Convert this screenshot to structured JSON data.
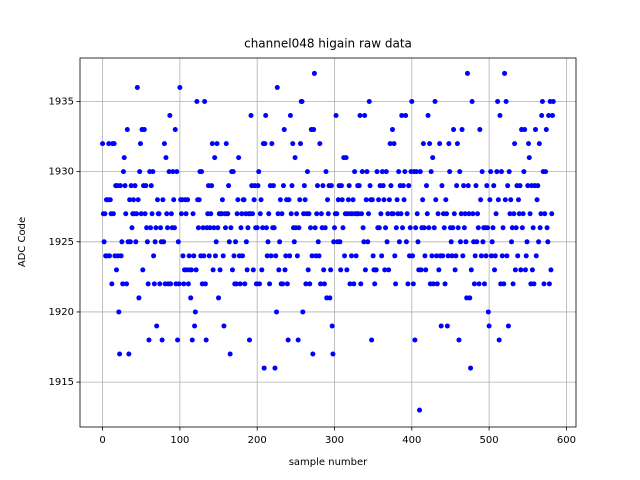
{
  "chart_data": {
    "type": "scatter",
    "title": "channel048 higain raw data",
    "xlabel": "sample number",
    "ylabel": "ADC Code",
    "grid": true,
    "xlim": [
      -29.2,
      612.4
    ],
    "ylim": [
      1911.8,
      1938.1
    ],
    "xticks": [
      0,
      100,
      200,
      300,
      400,
      500,
      600
    ],
    "yticks": [
      1915,
      1920,
      1925,
      1930,
      1935
    ],
    "series": [
      {
        "color": "#0000ff",
        "x": [
          0,
          1,
          2,
          3,
          4,
          5,
          6,
          7,
          8,
          9,
          10,
          11,
          12,
          13,
          14,
          15,
          16,
          17,
          18,
          19,
          20,
          21,
          22,
          23,
          24,
          25,
          26,
          27,
          28,
          29,
          30,
          31,
          32,
          33,
          34,
          35,
          36,
          37,
          38,
          39,
          40,
          41,
          42,
          43,
          44,
          45,
          46,
          47,
          48,
          49,
          50,
          51,
          52,
          53,
          54,
          55,
          56,
          57,
          58,
          59,
          60,
          61,
          62,
          63,
          64,
          65,
          66,
          67,
          68,
          69,
          70,
          71,
          72,
          73,
          74,
          75,
          76,
          77,
          78,
          79,
          80,
          81,
          82,
          83,
          84,
          85,
          86,
          87,
          88,
          89,
          90,
          91,
          92,
          93,
          94,
          95,
          96,
          97,
          98,
          99,
          100,
          101,
          102,
          103,
          104,
          105,
          106,
          107,
          108,
          109,
          110,
          111,
          112,
          113,
          114,
          115,
          116,
          117,
          118,
          119,
          120,
          121,
          122,
          123,
          124,
          125,
          126,
          127,
          128,
          129,
          130,
          131,
          132,
          133,
          134,
          135,
          136,
          137,
          138,
          139,
          140,
          141,
          142,
          143,
          144,
          145,
          146,
          147,
          148,
          149,
          150,
          151,
          152,
          153,
          154,
          155,
          156,
          157,
          158,
          159,
          160,
          161,
          162,
          163,
          164,
          165,
          166,
          167,
          168,
          169,
          170,
          171,
          172,
          173,
          174,
          175,
          176,
          177,
          178,
          179,
          180,
          181,
          182,
          183,
          184,
          185,
          186,
          187,
          188,
          189,
          190,
          191,
          192,
          193,
          194,
          195,
          196,
          197,
          198,
          199,
          200,
          201,
          202,
          203,
          204,
          205,
          206,
          207,
          208,
          209,
          210,
          211,
          212,
          213,
          214,
          215,
          216,
          217,
          218,
          219,
          220,
          221,
          222,
          223,
          224,
          225,
          226,
          227,
          228,
          229,
          230,
          231,
          232,
          233,
          234,
          235,
          236,
          237,
          238,
          239,
          240,
          241,
          242,
          243,
          244,
          245,
          246,
          247,
          248,
          249,
          250,
          251,
          252,
          253,
          254,
          255,
          256,
          257,
          258,
          259,
          260,
          261,
          262,
          263,
          264,
          265,
          266,
          267,
          268,
          269,
          270,
          271,
          272,
          273,
          274,
          275,
          276,
          277,
          278,
          279,
          280,
          281,
          282,
          283,
          284,
          285,
          286,
          287,
          288,
          289,
          290,
          291,
          292,
          293,
          294,
          295,
          296,
          297,
          298,
          299,
          300,
          301,
          302,
          303,
          304,
          305,
          306,
          307,
          308,
          309,
          310,
          311,
          312,
          313,
          314,
          315,
          316,
          317,
          318,
          319,
          320,
          321,
          322,
          323,
          324,
          325,
          326,
          327,
          328,
          329,
          330,
          331,
          332,
          333,
          334,
          335,
          336,
          337,
          338,
          339,
          340,
          341,
          342,
          343,
          344,
          345,
          346,
          347,
          348,
          349,
          350,
          351,
          352,
          353,
          354,
          355,
          356,
          357,
          358,
          359,
          360,
          361,
          362,
          363,
          364,
          365,
          366,
          367,
          368,
          369,
          370,
          371,
          372,
          373,
          374,
          375,
          376,
          377,
          378,
          379,
          380,
          381,
          382,
          383,
          384,
          385,
          386,
          387,
          388,
          389,
          390,
          391,
          392,
          393,
          394,
          395,
          396,
          397,
          398,
          399,
          400,
          401,
          402,
          403,
          404,
          405,
          406,
          407,
          408,
          409,
          410,
          411,
          412,
          413,
          414,
          415,
          416,
          417,
          418,
          419,
          420,
          421,
          422,
          423,
          424,
          425,
          426,
          427,
          428,
          429,
          430,
          431,
          432,
          433,
          434,
          435,
          436,
          437,
          438,
          439,
          440,
          441,
          442,
          443,
          444,
          445,
          446,
          447,
          448,
          449,
          450,
          451,
          452,
          453,
          454,
          455,
          456,
          457,
          458,
          459,
          460,
          461,
          462,
          463,
          464,
          465,
          466,
          467,
          468,
          469,
          470,
          471,
          472,
          473,
          474,
          475,
          476,
          477,
          478,
          479,
          480,
          481,
          482,
          483,
          484,
          485,
          486,
          487,
          488,
          489,
          490,
          491,
          492,
          493,
          494,
          495,
          496,
          497,
          498,
          499,
          500,
          501,
          502,
          503,
          504,
          505,
          506,
          507,
          508,
          509,
          510,
          511,
          512,
          513,
          514,
          515,
          516,
          517,
          518,
          519,
          520,
          521,
          522,
          523,
          524,
          525,
          526,
          527,
          528,
          529,
          530,
          531,
          532,
          533,
          534,
          535,
          536,
          537,
          538,
          539,
          540,
          541,
          542,
          543,
          544,
          545,
          546,
          547,
          548,
          549,
          550,
          551,
          552,
          553,
          554,
          555,
          556,
          557,
          558,
          559,
          560,
          561,
          562,
          563,
          564,
          565,
          566,
          567,
          568,
          569,
          570,
          571,
          572,
          573,
          574,
          575,
          576,
          577,
          578,
          579,
          580,
          581,
          582,
          583
        ],
        "values": [
          1932,
          1927,
          1925,
          1927,
          1924,
          1928,
          1924,
          1928,
          1932,
          1924,
          1928,
          1927,
          1922,
          1932,
          1927,
          1932,
          1924,
          1929,
          1923,
          1929,
          1924,
          1920,
          1917,
          1929,
          1924,
          1925,
          1922,
          1930,
          1931,
          1929,
          1927,
          1922,
          1933,
          1925,
          1917,
          1928,
          1925,
          1929,
          1926,
          1927,
          1928,
          1927,
          1929,
          1925,
          1927,
          1936,
          1928,
          1921,
          1930,
          1932,
          1927,
          1933,
          1923,
          1929,
          1933,
          1927,
          1929,
          1926,
          1925,
          1922,
          1918,
          1930,
          1926,
          1929,
          1927,
          1930,
          1924,
          1922,
          1925,
          1926,
          1919,
          1928,
          1927,
          1927,
          1922,
          1926,
          1925,
          1918,
          1928,
          1925,
          1932,
          1922,
          1931,
          1927,
          1926,
          1922,
          1930,
          1934,
          1922,
          1927,
          1926,
          1930,
          1928,
          1926,
          1933,
          1922,
          1930,
          1918,
          1925,
          1922,
          1936,
          1928,
          1927,
          1928,
          1924,
          1922,
          1923,
          1928,
          1927,
          1923,
          1928,
          1922,
          1924,
          1923,
          1921,
          1923,
          1918,
          1927,
          1924,
          1919,
          1920,
          1923,
          1935,
          1928,
          1926,
          1928,
          1930,
          1924,
          1930,
          1922,
          1926,
          1924,
          1935,
          1922,
          1918,
          1926,
          1927,
          1929,
          1924,
          1926,
          1927,
          1929,
          1932,
          1923,
          1926,
          1931,
          1924,
          1925,
          1932,
          1926,
          1921,
          1927,
          1923,
          1927,
          1927,
          1928,
          1924,
          1919,
          1927,
          1926,
          1932,
          1927,
          1927,
          1929,
          1925,
          1917,
          1926,
          1930,
          1923,
          1930,
          1924,
          1922,
          1925,
          1922,
          1927,
          1928,
          1931,
          1924,
          1922,
          1926,
          1927,
          1924,
          1928,
          1928,
          1922,
          1927,
          1925,
          1923,
          1926,
          1927,
          1918,
          1927,
          1934,
          1929,
          1927,
          1923,
          1928,
          1929,
          1926,
          1922,
          1926,
          1929,
          1930,
          1922,
          1927,
          1928,
          1923,
          1926,
          1932,
          1916,
          1932,
          1934,
          1926,
          1924,
          1925,
          1927,
          1922,
          1929,
          1924,
          1932,
          1926,
          1929,
          1926,
          1916,
          1924,
          1920,
          1936,
          1927,
          1923,
          1925,
          1928,
          1922,
          1927,
          1922,
          1929,
          1933,
          1923,
          1924,
          1928,
          1922,
          1918,
          1928,
          1924,
          1934,
          1927,
          1929,
          1932,
          1926,
          1925,
          1931,
          1926,
          1927,
          1924,
          1918,
          1926,
          1928,
          1932,
          1935,
          1935,
          1920,
          1927,
          1929,
          1928,
          1922,
          1927,
          1930,
          1923,
          1927,
          1922,
          1926,
          1933,
          1924,
          1917,
          1933,
          1937,
          1926,
          1924,
          1927,
          1929,
          1925,
          1924,
          1932,
          1922,
          1927,
          1926,
          1929,
          1923,
          1922,
          1926,
          1930,
          1921,
          1928,
          1927,
          1929,
          1921,
          1923,
          1929,
          1919,
          1917,
          1925,
          1926,
          1927,
          1934,
          1927,
          1925,
          1928,
          1929,
          1925,
          1923,
          1929,
          1928,
          1926,
          1931,
          1924,
          1927,
          1931,
          1923,
          1927,
          1928,
          1929,
          1922,
          1927,
          1924,
          1927,
          1928,
          1922,
          1930,
          1927,
          1924,
          1927,
          1929,
          1927,
          1929,
          1934,
          1922,
          1927,
          1930,
          1926,
          1925,
          1934,
          1923,
          1928,
          1930,
          1925,
          1927,
          1935,
          1929,
          1928,
          1918,
          1928,
          1924,
          1923,
          1922,
          1923,
          1923,
          1930,
          1926,
          1928,
          1926,
          1929,
          1927,
          1924,
          1930,
          1929,
          1928,
          1923,
          1926,
          1930,
          1925,
          1927,
          1923,
          1928,
          1932,
          1929,
          1927,
          1933,
          1927,
          1932,
          1924,
          1922,
          1926,
          1928,
          1927,
          1930,
          1925,
          1929,
          1927,
          1934,
          1926,
          1929,
          1928,
          1930,
          1934,
          1925,
          1927,
          1922,
          1929,
          1924,
          1926,
          1930,
          1935,
          1924,
          1922,
          1930,
          1918,
          1926,
          1930,
          1927,
          1925,
          1923,
          1913,
          1930,
          1923,
          1926,
          1928,
          1932,
          1926,
          1924,
          1923,
          1929,
          1927,
          1934,
          1926,
          1932,
          1922,
          1930,
          1924,
          1931,
          1922,
          1926,
          1935,
          1928,
          1924,
          1922,
          1927,
          1923,
          1932,
          1924,
          1919,
          1929,
          1924,
          1927,
          1926,
          1922,
          1928,
          1927,
          1919,
          1924,
          1932,
          1930,
          1926,
          1925,
          1924,
          1926,
          1933,
          1927,
          1923,
          1924,
          1929,
          1932,
          1926,
          1918,
          1930,
          1925,
          1927,
          1933,
          1924,
          1929,
          1926,
          1927,
          1925,
          1921,
          1937,
          1929,
          1927,
          1921,
          1916,
          1923,
          1935,
          1927,
          1925,
          1922,
          1924,
          1929,
          1925,
          1927,
          1926,
          1922,
          1933,
          1928,
          1924,
          1930,
          1925,
          1926,
          1922,
          1926,
          1924,
          1929,
          1926,
          1920,
          1919,
          1928,
          1930,
          1924,
          1925,
          1926,
          1929,
          1923,
          1924,
          1927,
          1930,
          1935,
          1928,
          1918,
          1934,
          1922,
          1930,
          1924,
          1926,
          1922,
          1937,
          1928,
          1935,
          1924,
          1929,
          1919,
          1930,
          1927,
          1928,
          1925,
          1926,
          1922,
          1927,
          1932,
          1923,
          1926,
          1929,
          1924,
          1928,
          1927,
          1929,
          1923,
          1933,
          1926,
          1927,
          1930,
          1933,
          1923,
          1924,
          1925,
          1929,
          1932,
          1931,
          1927,
          1922,
          1929,
          1923,
          1926,
          1922,
          1929,
          1933,
          1924,
          1928,
          1929,
          1925,
          1932,
          1926,
          1927,
          1934,
          1935,
          1930,
          1922,
          1927,
          1930,
          1933,
          1926,
          1925,
          1934,
          1922,
          1935,
          1923,
          1927,
          1934,
          1935
        ]
      }
    ]
  }
}
